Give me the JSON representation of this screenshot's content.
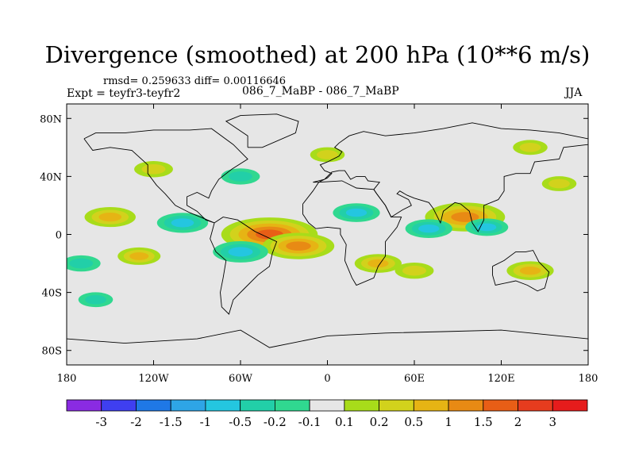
{
  "title": "Divergence (smoothed) at 200 hPa (10**6 m/s)",
  "stats": "rmsd= 0.259633 diff= 0.00116646",
  "expt": "Expt = teyfr3-teyfr2",
  "center_label": "086_7_MaBP - 086_7_MaBP",
  "season": "JJA",
  "chart_data": {
    "type": "heatmap",
    "title": "Divergence (smoothed) at 200 hPa (10**6 m/s)",
    "xlabel": "",
    "ylabel": "",
    "xlim": [
      -180,
      180
    ],
    "ylim": [
      -90,
      90
    ],
    "x_ticks": [
      {
        "value": -180,
        "label": "180"
      },
      {
        "value": -120,
        "label": "120W"
      },
      {
        "value": -60,
        "label": "60W"
      },
      {
        "value": 0,
        "label": "0"
      },
      {
        "value": 60,
        "label": "60E"
      },
      {
        "value": 120,
        "label": "120E"
      },
      {
        "value": 180,
        "label": "180"
      }
    ],
    "y_ticks": [
      {
        "value": 80,
        "label": "80N"
      },
      {
        "value": 40,
        "label": "40N"
      },
      {
        "value": 0,
        "label": "0"
      },
      {
        "value": -40,
        "label": "40S"
      },
      {
        "value": -80,
        "label": "80S"
      }
    ],
    "contour_levels": [
      "-3",
      "-2",
      "-1.5",
      "-1",
      "-0.5",
      "-0.2",
      "-0.1",
      "0.1",
      "0.2",
      "0.5",
      "1",
      "1.5",
      "2",
      "3"
    ],
    "colorbar_colors": [
      "#8a2be2",
      "#3f3ff0",
      "#1f78e6",
      "#2ea5e6",
      "#24c6e0",
      "#22cfa8",
      "#30d890",
      "#e6e6e6",
      "#a8dc1a",
      "#d2d21c",
      "#e6b414",
      "#e88a14",
      "#e85e16",
      "#e63c1e",
      "#e61c1c"
    ],
    "anomalies": [
      {
        "lon": -40,
        "lat": 0,
        "value": 1.8
      },
      {
        "lon": -20,
        "lat": -8,
        "value": 1.2
      },
      {
        "lon": -60,
        "lat": -12,
        "value": -0.8
      },
      {
        "lon": 95,
        "lat": 12,
        "value": 1.4
      },
      {
        "lon": 110,
        "lat": 5,
        "value": -0.5
      },
      {
        "lon": 70,
        "lat": 4,
        "value": -0.6
      },
      {
        "lon": -100,
        "lat": 8,
        "value": -0.7
      },
      {
        "lon": -150,
        "lat": 12,
        "value": 0.7
      },
      {
        "lon": -130,
        "lat": -15,
        "value": 0.5
      },
      {
        "lon": -170,
        "lat": -20,
        "value": -0.4
      },
      {
        "lon": 20,
        "lat": 15,
        "value": -0.6
      },
      {
        "lon": 35,
        "lat": -20,
        "value": 0.6
      },
      {
        "lon": 60,
        "lat": -25,
        "value": 0.4
      },
      {
        "lon": 140,
        "lat": -25,
        "value": 0.6
      },
      {
        "lon": 160,
        "lat": 35,
        "value": 0.3
      },
      {
        "lon": -120,
        "lat": 45,
        "value": 0.4
      },
      {
        "lon": -60,
        "lat": 40,
        "value": -0.4
      },
      {
        "lon": 0,
        "lat": 55,
        "value": 0.3
      },
      {
        "lon": 140,
        "lat": 60,
        "value": 0.3
      },
      {
        "lon": -160,
        "lat": -45,
        "value": -0.3
      }
    ]
  }
}
